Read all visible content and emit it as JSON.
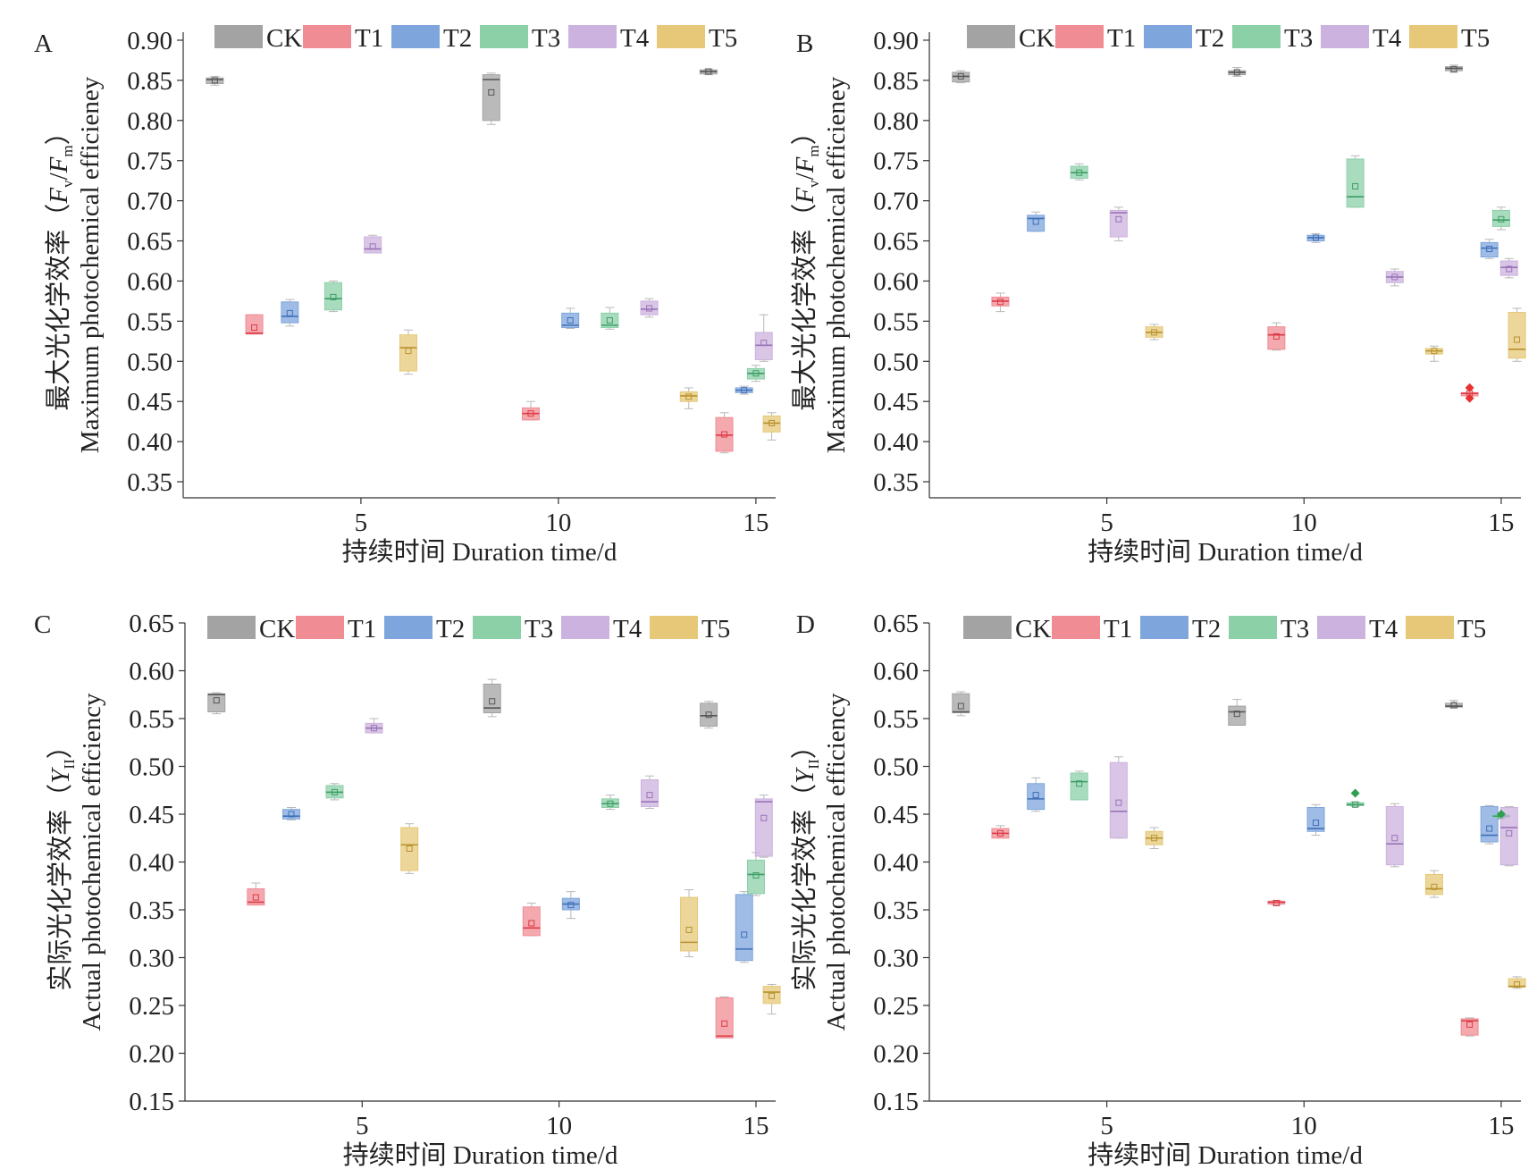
{
  "colors": {
    "CK": "#a3a3a3",
    "T1": "#f08c94",
    "T2": "#7ea6dc",
    "T3": "#8cd0a8",
    "T4": "#ccb2de",
    "T5": "#e6c878"
  },
  "line_colors": {
    "CK": "#555555",
    "T1": "#dd3b46",
    "T2": "#3f6fb8",
    "T3": "#3c9e66",
    "T4": "#9a74b8",
    "T5": "#b8922e"
  },
  "outlier_colors": {
    "T1": "#e8322f",
    "T3": "#2e9e4f"
  },
  "chart_data": [
    {
      "panel": "A",
      "type": "box",
      "ylabel_cn": "最大光化学效率（",
      "ylabel_en": "Maximum photochemical efficieney",
      "ylabel_symbol": "F",
      "ylabel_sub1": "v",
      "ylabel_sub2": "m",
      "xlabel": "持续时间 Duration time/d",
      "ylim": [
        0.33,
        0.91
      ],
      "yticks": [
        "0.35",
        "0.40",
        "0.45",
        "0.50",
        "0.55",
        "0.60",
        "0.65",
        "0.70",
        "0.75",
        "0.80",
        "0.85",
        "0.90"
      ],
      "xlim": [
        0.5,
        15.5
      ],
      "xticks": [
        "5",
        "10",
        "15"
      ],
      "legend": [
        "CK",
        "T1",
        "T2",
        "T3",
        "T4",
        "T5"
      ],
      "boxes": [
        {
          "series": "CK",
          "x": 1.3,
          "q1": 0.846,
          "median": 0.851,
          "q3": 0.853,
          "mean": 0.85,
          "min": 0.844,
          "max": 0.855
        },
        {
          "series": "T1",
          "x": 2.3,
          "q1": 0.534,
          "median": 0.535,
          "q3": 0.558,
          "mean": 0.542,
          "min": 0.534,
          "max": 0.558
        },
        {
          "series": "T2",
          "x": 3.2,
          "q1": 0.548,
          "median": 0.556,
          "q3": 0.574,
          "mean": 0.56,
          "min": 0.544,
          "max": 0.577
        },
        {
          "series": "T3",
          "x": 4.3,
          "q1": 0.564,
          "median": 0.578,
          "q3": 0.598,
          "mean": 0.58,
          "min": 0.562,
          "max": 0.6
        },
        {
          "series": "T4",
          "x": 5.3,
          "q1": 0.635,
          "median": 0.64,
          "q3": 0.655,
          "mean": 0.643,
          "min": 0.635,
          "max": 0.657
        },
        {
          "series": "T5",
          "x": 6.2,
          "q1": 0.488,
          "median": 0.517,
          "q3": 0.533,
          "mean": 0.513,
          "min": 0.484,
          "max": 0.539
        },
        {
          "series": "CK",
          "x": 8.3,
          "q1": 0.8,
          "median": 0.851,
          "q3": 0.857,
          "mean": 0.835,
          "min": 0.795,
          "max": 0.859
        },
        {
          "series": "T1",
          "x": 9.3,
          "q1": 0.427,
          "median": 0.435,
          "q3": 0.442,
          "mean": 0.435,
          "min": 0.427,
          "max": 0.45
        },
        {
          "series": "T2",
          "x": 10.3,
          "q1": 0.542,
          "median": 0.545,
          "q3": 0.56,
          "mean": 0.551,
          "min": 0.541,
          "max": 0.566
        },
        {
          "series": "T3",
          "x": 11.3,
          "q1": 0.542,
          "median": 0.545,
          "q3": 0.56,
          "mean": 0.551,
          "min": 0.54,
          "max": 0.567
        },
        {
          "series": "T4",
          "x": 12.3,
          "q1": 0.558,
          "median": 0.565,
          "q3": 0.575,
          "mean": 0.566,
          "min": 0.555,
          "max": 0.578
        },
        {
          "series": "T5",
          "x": 13.3,
          "q1": 0.45,
          "median": 0.457,
          "q3": 0.462,
          "mean": 0.456,
          "min": 0.441,
          "max": 0.467
        },
        {
          "series": "CK",
          "x": 13.8,
          "q1": 0.858,
          "median": 0.861,
          "q3": 0.863,
          "mean": 0.861,
          "min": 0.857,
          "max": 0.864
        },
        {
          "series": "T1",
          "x": 14.2,
          "q1": 0.388,
          "median": 0.408,
          "q3": 0.43,
          "mean": 0.409,
          "min": 0.386,
          "max": 0.436
        },
        {
          "series": "T2",
          "x": 14.7,
          "q1": 0.461,
          "median": 0.464,
          "q3": 0.467,
          "mean": 0.464,
          "min": 0.459,
          "max": 0.469
        },
        {
          "series": "T3",
          "x": 15.0,
          "q1": 0.478,
          "median": 0.485,
          "q3": 0.491,
          "mean": 0.485,
          "min": 0.475,
          "max": 0.495
        },
        {
          "series": "T4",
          "x": 15.2,
          "q1": 0.502,
          "median": 0.52,
          "q3": 0.536,
          "mean": 0.523,
          "min": 0.5,
          "max": 0.558
        },
        {
          "series": "T5",
          "x": 15.4,
          "q1": 0.412,
          "median": 0.423,
          "q3": 0.432,
          "mean": 0.423,
          "min": 0.402,
          "max": 0.436
        }
      ],
      "outliers": []
    },
    {
      "panel": "B",
      "type": "box",
      "ylabel_cn": "最大光化学效率（",
      "ylabel_en": "Maximum photochemical efficieney",
      "ylabel_symbol": "F",
      "ylabel_sub1": "v",
      "ylabel_sub2": "m",
      "xlabel": "持续时间 Duration time/d",
      "ylim": [
        0.33,
        0.91
      ],
      "yticks": [
        "0.35",
        "0.40",
        "0.45",
        "0.50",
        "0.55",
        "0.60",
        "0.65",
        "0.70",
        "0.75",
        "0.80",
        "0.85",
        "0.90"
      ],
      "xlim": [
        0.5,
        15.5
      ],
      "xticks": [
        "5",
        "10",
        "15"
      ],
      "legend": [
        "CK",
        "T1",
        "T2",
        "T3",
        "T4",
        "T5"
      ],
      "boxes": [
        {
          "series": "CK",
          "x": 1.3,
          "q1": 0.848,
          "median": 0.855,
          "q3": 0.86,
          "mean": 0.855,
          "min": 0.847,
          "max": 0.862
        },
        {
          "series": "T1",
          "x": 2.3,
          "q1": 0.569,
          "median": 0.575,
          "q3": 0.58,
          "mean": 0.574,
          "min": 0.562,
          "max": 0.585
        },
        {
          "series": "T2",
          "x": 3.2,
          "q1": 0.662,
          "median": 0.678,
          "q3": 0.682,
          "mean": 0.674,
          "min": 0.662,
          "max": 0.686
        },
        {
          "series": "T3",
          "x": 4.3,
          "q1": 0.728,
          "median": 0.735,
          "q3": 0.743,
          "mean": 0.735,
          "min": 0.726,
          "max": 0.746
        },
        {
          "series": "T4",
          "x": 5.3,
          "q1": 0.655,
          "median": 0.685,
          "q3": 0.688,
          "mean": 0.677,
          "min": 0.65,
          "max": 0.692
        },
        {
          "series": "T5",
          "x": 6.2,
          "q1": 0.53,
          "median": 0.536,
          "q3": 0.543,
          "mean": 0.536,
          "min": 0.527,
          "max": 0.546
        },
        {
          "series": "CK",
          "x": 8.3,
          "q1": 0.857,
          "median": 0.86,
          "q3": 0.862,
          "mean": 0.86,
          "min": 0.855,
          "max": 0.866
        },
        {
          "series": "T1",
          "x": 9.3,
          "q1": 0.515,
          "median": 0.533,
          "q3": 0.543,
          "mean": 0.531,
          "min": 0.514,
          "max": 0.548
        },
        {
          "series": "T2",
          "x": 10.3,
          "q1": 0.65,
          "median": 0.654,
          "q3": 0.657,
          "mean": 0.654,
          "min": 0.648,
          "max": 0.659
        },
        {
          "series": "T3",
          "x": 11.3,
          "q1": 0.692,
          "median": 0.705,
          "q3": 0.752,
          "mean": 0.718,
          "min": 0.692,
          "max": 0.756
        },
        {
          "series": "T4",
          "x": 12.3,
          "q1": 0.598,
          "median": 0.605,
          "q3": 0.612,
          "mean": 0.605,
          "min": 0.594,
          "max": 0.615
        },
        {
          "series": "T5",
          "x": 13.3,
          "q1": 0.509,
          "median": 0.513,
          "q3": 0.516,
          "mean": 0.513,
          "min": 0.5,
          "max": 0.519
        },
        {
          "series": "CK",
          "x": 13.8,
          "q1": 0.862,
          "median": 0.865,
          "q3": 0.867,
          "mean": 0.864,
          "min": 0.86,
          "max": 0.869
        },
        {
          "series": "T1",
          "x": 14.2,
          "q1": 0.457,
          "median": 0.46,
          "q3": 0.461,
          "mean": 0.46,
          "min": 0.457,
          "max": 0.461
        },
        {
          "series": "T2",
          "x": 14.7,
          "q1": 0.63,
          "median": 0.641,
          "q3": 0.648,
          "mean": 0.64,
          "min": 0.628,
          "max": 0.652
        },
        {
          "series": "T3",
          "x": 15.0,
          "q1": 0.668,
          "median": 0.676,
          "q3": 0.688,
          "mean": 0.677,
          "min": 0.664,
          "max": 0.692
        },
        {
          "series": "T4",
          "x": 15.2,
          "q1": 0.607,
          "median": 0.617,
          "q3": 0.625,
          "mean": 0.615,
          "min": 0.604,
          "max": 0.628
        },
        {
          "series": "T5",
          "x": 15.4,
          "q1": 0.504,
          "median": 0.515,
          "q3": 0.561,
          "mean": 0.527,
          "min": 0.5,
          "max": 0.566
        }
      ],
      "outliers": [
        {
          "series": "T1",
          "x": 14.2,
          "y": 0.467
        },
        {
          "series": "T1",
          "x": 14.2,
          "y": 0.454
        }
      ]
    },
    {
      "panel": "C",
      "type": "box",
      "ylabel_cn": "实际光化学效率（",
      "ylabel_en": "Actual photochemical efficiency",
      "ylabel_symbol": "Y",
      "ylabel_sub1": "II",
      "ylabel_sub2": "",
      "xlabel": "持续时间 Duration time/d",
      "ylim": [
        0.15,
        0.65
      ],
      "yticks": [
        "0.15",
        "0.20",
        "0.25",
        "0.30",
        "0.35",
        "0.40",
        "0.45",
        "0.50",
        "0.55",
        "0.60",
        "0.65"
      ],
      "xlim": [
        0.5,
        15.5
      ],
      "xticks": [
        "5",
        "10",
        "15"
      ],
      "legend": [
        "CK",
        "T1",
        "T2",
        "T3",
        "T4",
        "T5"
      ],
      "boxes": [
        {
          "series": "CK",
          "x": 1.3,
          "q1": 0.557,
          "median": 0.575,
          "q3": 0.576,
          "mean": 0.569,
          "min": 0.555,
          "max": 0.577
        },
        {
          "series": "T1",
          "x": 2.3,
          "q1": 0.355,
          "median": 0.358,
          "q3": 0.372,
          "mean": 0.363,
          "min": 0.355,
          "max": 0.378
        },
        {
          "series": "T2",
          "x": 3.2,
          "q1": 0.445,
          "median": 0.448,
          "q3": 0.455,
          "mean": 0.45,
          "min": 0.444,
          "max": 0.457
        },
        {
          "series": "T3",
          "x": 4.3,
          "q1": 0.467,
          "median": 0.473,
          "q3": 0.48,
          "mean": 0.473,
          "min": 0.465,
          "max": 0.482
        },
        {
          "series": "T4",
          "x": 5.3,
          "q1": 0.535,
          "median": 0.54,
          "q3": 0.545,
          "mean": 0.54,
          "min": 0.535,
          "max": 0.55
        },
        {
          "series": "T5",
          "x": 6.2,
          "q1": 0.391,
          "median": 0.418,
          "q3": 0.436,
          "mean": 0.414,
          "min": 0.388,
          "max": 0.44
        },
        {
          "series": "CK",
          "x": 8.3,
          "q1": 0.556,
          "median": 0.561,
          "q3": 0.586,
          "mean": 0.568,
          "min": 0.552,
          "max": 0.591
        },
        {
          "series": "T1",
          "x": 9.3,
          "q1": 0.323,
          "median": 0.331,
          "q3": 0.353,
          "mean": 0.336,
          "min": 0.323,
          "max": 0.357
        },
        {
          "series": "T2",
          "x": 10.3,
          "q1": 0.35,
          "median": 0.356,
          "q3": 0.362,
          "mean": 0.355,
          "min": 0.341,
          "max": 0.369
        },
        {
          "series": "T3",
          "x": 11.3,
          "q1": 0.457,
          "median": 0.461,
          "q3": 0.466,
          "mean": 0.461,
          "min": 0.455,
          "max": 0.47
        },
        {
          "series": "T4",
          "x": 12.3,
          "q1": 0.458,
          "median": 0.463,
          "q3": 0.486,
          "mean": 0.47,
          "min": 0.456,
          "max": 0.49
        },
        {
          "series": "T5",
          "x": 13.3,
          "q1": 0.307,
          "median": 0.316,
          "q3": 0.363,
          "mean": 0.329,
          "min": 0.301,
          "max": 0.371
        },
        {
          "series": "CK",
          "x": 13.8,
          "q1": 0.542,
          "median": 0.553,
          "q3": 0.566,
          "mean": 0.554,
          "min": 0.54,
          "max": 0.568
        },
        {
          "series": "T1",
          "x": 14.2,
          "q1": 0.216,
          "median": 0.218,
          "q3": 0.258,
          "mean": 0.231,
          "min": 0.216,
          "max": 0.259
        },
        {
          "series": "T2",
          "x": 14.7,
          "q1": 0.297,
          "median": 0.309,
          "q3": 0.366,
          "mean": 0.324,
          "min": 0.295,
          "max": 0.369
        },
        {
          "series": "T3",
          "x": 15.0,
          "q1": 0.367,
          "median": 0.387,
          "q3": 0.402,
          "mean": 0.386,
          "min": 0.365,
          "max": 0.41
        },
        {
          "series": "T4",
          "x": 15.2,
          "q1": 0.406,
          "median": 0.463,
          "q3": 0.466,
          "mean": 0.446,
          "min": 0.405,
          "max": 0.47
        },
        {
          "series": "T5",
          "x": 15.4,
          "q1": 0.252,
          "median": 0.264,
          "q3": 0.27,
          "mean": 0.26,
          "min": 0.241,
          "max": 0.272
        }
      ],
      "outliers": []
    },
    {
      "panel": "D",
      "type": "box",
      "ylabel_cn": "实际光化学效率（",
      "ylabel_en": "Actual photochemical efficiency",
      "ylabel_symbol": "Y",
      "ylabel_sub1": "II",
      "ylabel_sub2": "",
      "xlabel": "持续时间 Duration time/d",
      "ylim": [
        0.15,
        0.65
      ],
      "yticks": [
        "0.15",
        "0.20",
        "0.25",
        "0.30",
        "0.35",
        "0.40",
        "0.45",
        "0.50",
        "0.55",
        "0.60",
        "0.65"
      ],
      "xlim": [
        0.5,
        15.5
      ],
      "xticks": [
        "5",
        "10",
        "15"
      ],
      "legend": [
        "CK",
        "T1",
        "T2",
        "T3",
        "T4",
        "T5"
      ],
      "boxes": [
        {
          "series": "CK",
          "x": 1.3,
          "q1": 0.556,
          "median": 0.557,
          "q3": 0.576,
          "mean": 0.563,
          "min": 0.553,
          "max": 0.578
        },
        {
          "series": "T1",
          "x": 2.3,
          "q1": 0.425,
          "median": 0.43,
          "q3": 0.435,
          "mean": 0.43,
          "min": 0.425,
          "max": 0.438
        },
        {
          "series": "T2",
          "x": 3.2,
          "q1": 0.455,
          "median": 0.466,
          "q3": 0.482,
          "mean": 0.47,
          "min": 0.453,
          "max": 0.488
        },
        {
          "series": "T3",
          "x": 4.3,
          "q1": 0.465,
          "median": 0.484,
          "q3": 0.493,
          "mean": 0.482,
          "min": 0.465,
          "max": 0.495
        },
        {
          "series": "T4",
          "x": 5.3,
          "q1": 0.425,
          "median": 0.453,
          "q3": 0.504,
          "mean": 0.462,
          "min": 0.425,
          "max": 0.51
        },
        {
          "series": "T5",
          "x": 6.2,
          "q1": 0.418,
          "median": 0.425,
          "q3": 0.432,
          "mean": 0.425,
          "min": 0.414,
          "max": 0.436
        },
        {
          "series": "CK",
          "x": 8.3,
          "q1": 0.543,
          "median": 0.557,
          "q3": 0.563,
          "mean": 0.555,
          "min": 0.543,
          "max": 0.57
        },
        {
          "series": "T1",
          "x": 9.3,
          "q1": 0.356,
          "median": 0.358,
          "q3": 0.359,
          "mean": 0.357,
          "min": 0.355,
          "max": 0.36
        },
        {
          "series": "T2",
          "x": 10.3,
          "q1": 0.432,
          "median": 0.435,
          "q3": 0.457,
          "mean": 0.441,
          "min": 0.428,
          "max": 0.46
        },
        {
          "series": "T3",
          "x": 11.3,
          "q1": 0.459,
          "median": 0.46,
          "q3": 0.462,
          "mean": 0.46,
          "min": 0.458,
          "max": 0.463
        },
        {
          "series": "T4",
          "x": 12.3,
          "q1": 0.397,
          "median": 0.419,
          "q3": 0.458,
          "mean": 0.425,
          "min": 0.395,
          "max": 0.461
        },
        {
          "series": "T5",
          "x": 13.3,
          "q1": 0.366,
          "median": 0.372,
          "q3": 0.387,
          "mean": 0.374,
          "min": 0.363,
          "max": 0.391
        },
        {
          "series": "CK",
          "x": 13.8,
          "q1": 0.562,
          "median": 0.563,
          "q3": 0.566,
          "mean": 0.564,
          "min": 0.561,
          "max": 0.569
        },
        {
          "series": "T1",
          "x": 14.2,
          "q1": 0.219,
          "median": 0.234,
          "q3": 0.236,
          "mean": 0.23,
          "min": 0.218,
          "max": 0.237
        },
        {
          "series": "T2",
          "x": 14.7,
          "q1": 0.421,
          "median": 0.428,
          "q3": 0.458,
          "mean": 0.435,
          "min": 0.419,
          "max": 0.459
        },
        {
          "series": "T3",
          "x": 15.0,
          "q1": 0.447,
          "median": 0.448,
          "q3": 0.449,
          "mean": 0.448,
          "min": 0.447,
          "max": 0.449
        },
        {
          "series": "T4",
          "x": 15.2,
          "q1": 0.397,
          "median": 0.436,
          "q3": 0.457,
          "mean": 0.43,
          "min": 0.396,
          "max": 0.458
        },
        {
          "series": "T5",
          "x": 15.4,
          "q1": 0.269,
          "median": 0.27,
          "q3": 0.278,
          "mean": 0.272,
          "min": 0.268,
          "max": 0.28
        }
      ],
      "outliers": [
        {
          "series": "T3",
          "x": 11.3,
          "y": 0.472
        },
        {
          "series": "T3",
          "x": 15.0,
          "y": 0.45
        }
      ]
    }
  ]
}
